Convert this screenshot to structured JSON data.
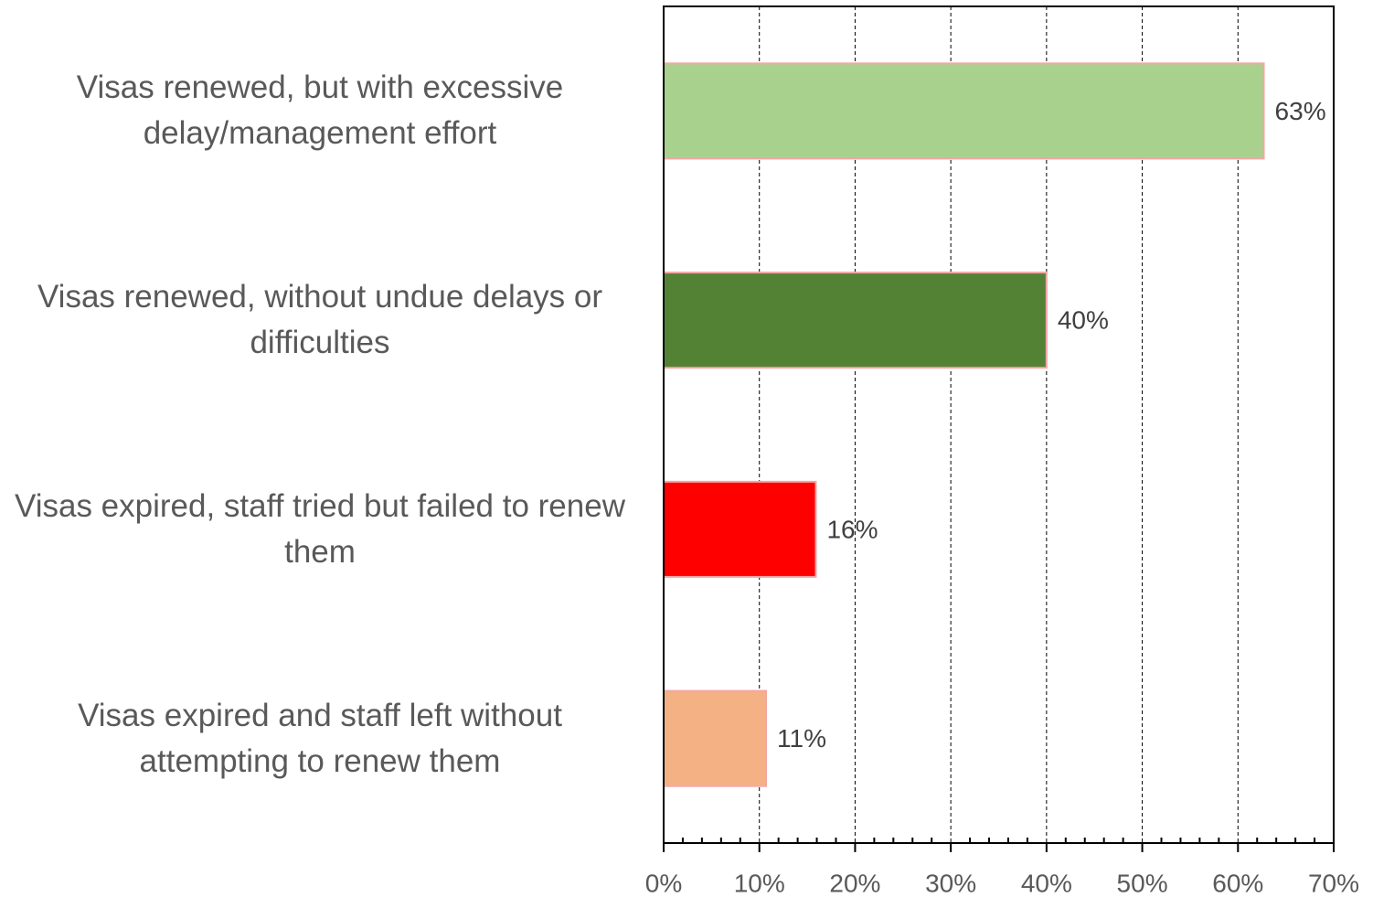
{
  "chart_data": {
    "type": "barh",
    "categories": [
      "Visas renewed, but with excessive delay/management effort",
      "Visas renewed, without undue delays or difficulties",
      "Visas expired, staff tried but failed to renew them",
      "Visas expired and staff left without attempting to renew them"
    ],
    "values": [
      62.7,
      40,
      15.9,
      10.7
    ],
    "value_labels": [
      "63%",
      "40%",
      "16%",
      "11%"
    ],
    "colors": [
      "#a9d18e",
      "#548235",
      "#ff0000",
      "#f4b183"
    ],
    "edge_color": "#f4a6a6",
    "xlim": [
      0,
      70
    ],
    "xticks": [
      {
        "value": 0,
        "label": "0%"
      },
      {
        "value": 10,
        "label": "10%"
      },
      {
        "value": 20,
        "label": "20%"
      },
      {
        "value": 30,
        "label": "30%"
      },
      {
        "value": 40,
        "label": "40%"
      },
      {
        "value": 50,
        "label": "50%"
      },
      {
        "value": 60,
        "label": "60%"
      },
      {
        "value": 70,
        "label": "70%"
      }
    ],
    "xminorticks": [
      2,
      4,
      6,
      8,
      12,
      14,
      16,
      18,
      22,
      24,
      26,
      28,
      32,
      34,
      36,
      38,
      42,
      44,
      46,
      48,
      52,
      54,
      56,
      58,
      62,
      64,
      66,
      68
    ],
    "grid": true
  }
}
